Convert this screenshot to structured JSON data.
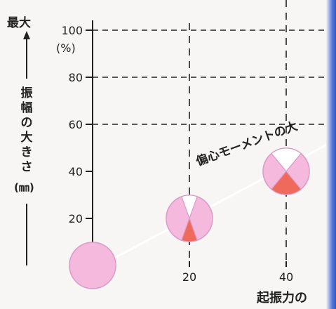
{
  "chart_data": {
    "type": "scatter",
    "title": "",
    "ylabel_top": "最大",
    "ylabel_chars": [
      "振",
      "幅",
      "の",
      "大",
      "き",
      "さ"
    ],
    "ylabel_unit": "(㎜)",
    "y_unit_tick": "(%)",
    "xlabel": "起振力の",
    "diagonal_label": "偏心モーメントの大",
    "x_ticks": [
      "20",
      "40"
    ],
    "x_tick_values": [
      20,
      40
    ],
    "y_ticks": [
      "20",
      "40",
      "60",
      "80",
      "100"
    ],
    "y_tick_values": [
      20,
      40,
      60,
      80,
      100
    ],
    "xlim": [
      0,
      50
    ],
    "ylim": [
      0,
      100
    ],
    "grid": "dashed",
    "points": [
      {
        "x": 0,
        "y": 0,
        "wedge_percent": 0
      },
      {
        "x": 20,
        "y": 20,
        "wedge_percent": 20
      },
      {
        "x": 40,
        "y": 40,
        "wedge_percent": 40
      }
    ],
    "trend_line": {
      "from": [
        0,
        0
      ],
      "to": [
        48,
        52
      ]
    }
  },
  "colors": {
    "circle_fill": "#f4b9dc",
    "circle_stroke": "#d89cc6",
    "wedge_fill": "#f06a5c",
    "white_wedge": "#ffffff",
    "grid": "#222222",
    "axis": "#222222",
    "trend_line": "#ffffff"
  }
}
